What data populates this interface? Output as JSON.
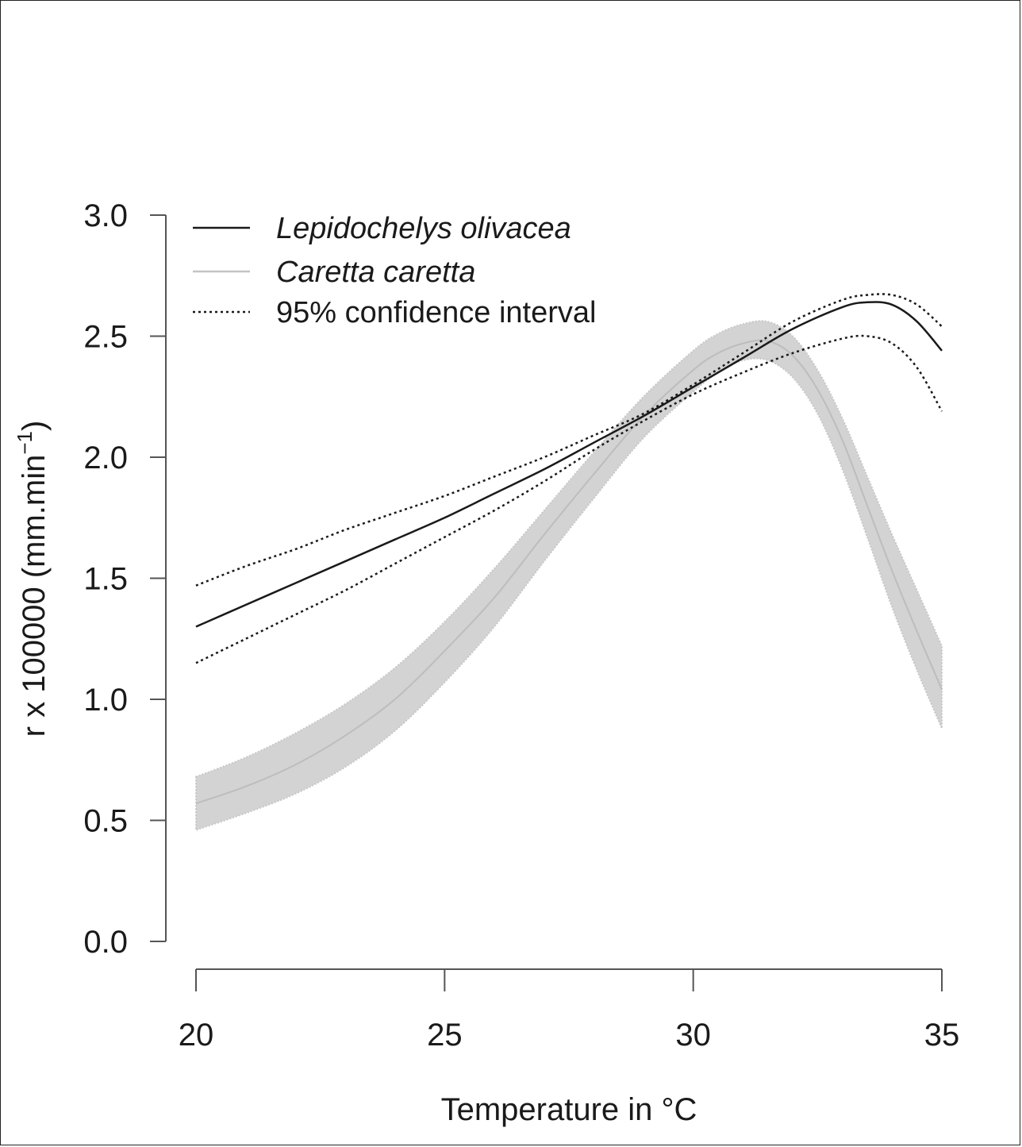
{
  "chart_data": {
    "type": "line",
    "xlabel": "Temperature in °C",
    "ylabel": "r x 100000 (mm.min",
    "ylabel_sup": "−1",
    "ylabel_close": ")",
    "xlim": [
      20,
      35
    ],
    "ylim": [
      0,
      3
    ],
    "x_ticks": [
      "20",
      "25",
      "30",
      "35"
    ],
    "y_ticks": [
      "0.0",
      "0.5",
      "1.0",
      "1.5",
      "2.0",
      "2.5",
      "3.0"
    ],
    "grid": false,
    "legend_position": "top-left",
    "legend": [
      {
        "label": "Lepidochelys olivacea",
        "style": "solid-dark",
        "italic": true
      },
      {
        "label": "Caretta caretta",
        "style": "solid-light",
        "italic": true
      },
      {
        "label": "95% confidence interval",
        "style": "dotted",
        "italic": false
      }
    ],
    "series": [
      {
        "name": "Lepidochelys olivacea",
        "color": "#1a1a1a",
        "x": [
          20,
          21,
          22,
          23,
          24,
          25,
          26,
          27,
          28,
          29,
          30,
          31,
          32,
          33,
          33.5,
          34,
          34.5,
          35
        ],
        "y": [
          1.3,
          1.39,
          1.48,
          1.57,
          1.66,
          1.75,
          1.85,
          1.95,
          2.06,
          2.17,
          2.29,
          2.41,
          2.53,
          2.62,
          2.64,
          2.63,
          2.56,
          2.44
        ],
        "ci_upper": [
          1.47,
          1.55,
          1.62,
          1.7,
          1.77,
          1.84,
          1.92,
          2.0,
          2.09,
          2.18,
          2.3,
          2.43,
          2.56,
          2.65,
          2.67,
          2.67,
          2.63,
          2.54
        ],
        "ci_lower": [
          1.15,
          1.25,
          1.35,
          1.45,
          1.56,
          1.67,
          1.78,
          1.9,
          2.03,
          2.15,
          2.26,
          2.35,
          2.43,
          2.49,
          2.5,
          2.47,
          2.37,
          2.19
        ]
      },
      {
        "name": "Caretta caretta",
        "color": "#c4c4c4",
        "band_color": "#d3d3d3",
        "x": [
          20,
          21,
          22,
          23,
          24,
          25,
          26,
          27,
          28,
          29,
          30,
          30.5,
          31,
          31.5,
          32,
          32.5,
          33,
          33.5,
          34,
          34.5,
          35
        ],
        "y": [
          0.57,
          0.64,
          0.73,
          0.85,
          1.0,
          1.2,
          1.42,
          1.68,
          1.93,
          2.17,
          2.36,
          2.43,
          2.47,
          2.48,
          2.42,
          2.28,
          2.07,
          1.8,
          1.53,
          1.28,
          1.04
        ],
        "ci_upper": [
          0.68,
          0.76,
          0.86,
          0.98,
          1.13,
          1.32,
          1.54,
          1.78,
          2.02,
          2.25,
          2.44,
          2.51,
          2.55,
          2.56,
          2.5,
          2.36,
          2.16,
          1.92,
          1.68,
          1.45,
          1.22
        ],
        "ci_lower": [
          0.46,
          0.53,
          0.61,
          0.72,
          0.87,
          1.07,
          1.3,
          1.57,
          1.83,
          2.08,
          2.27,
          2.35,
          2.4,
          2.4,
          2.33,
          2.18,
          1.95,
          1.67,
          1.38,
          1.12,
          0.88
        ]
      }
    ]
  }
}
